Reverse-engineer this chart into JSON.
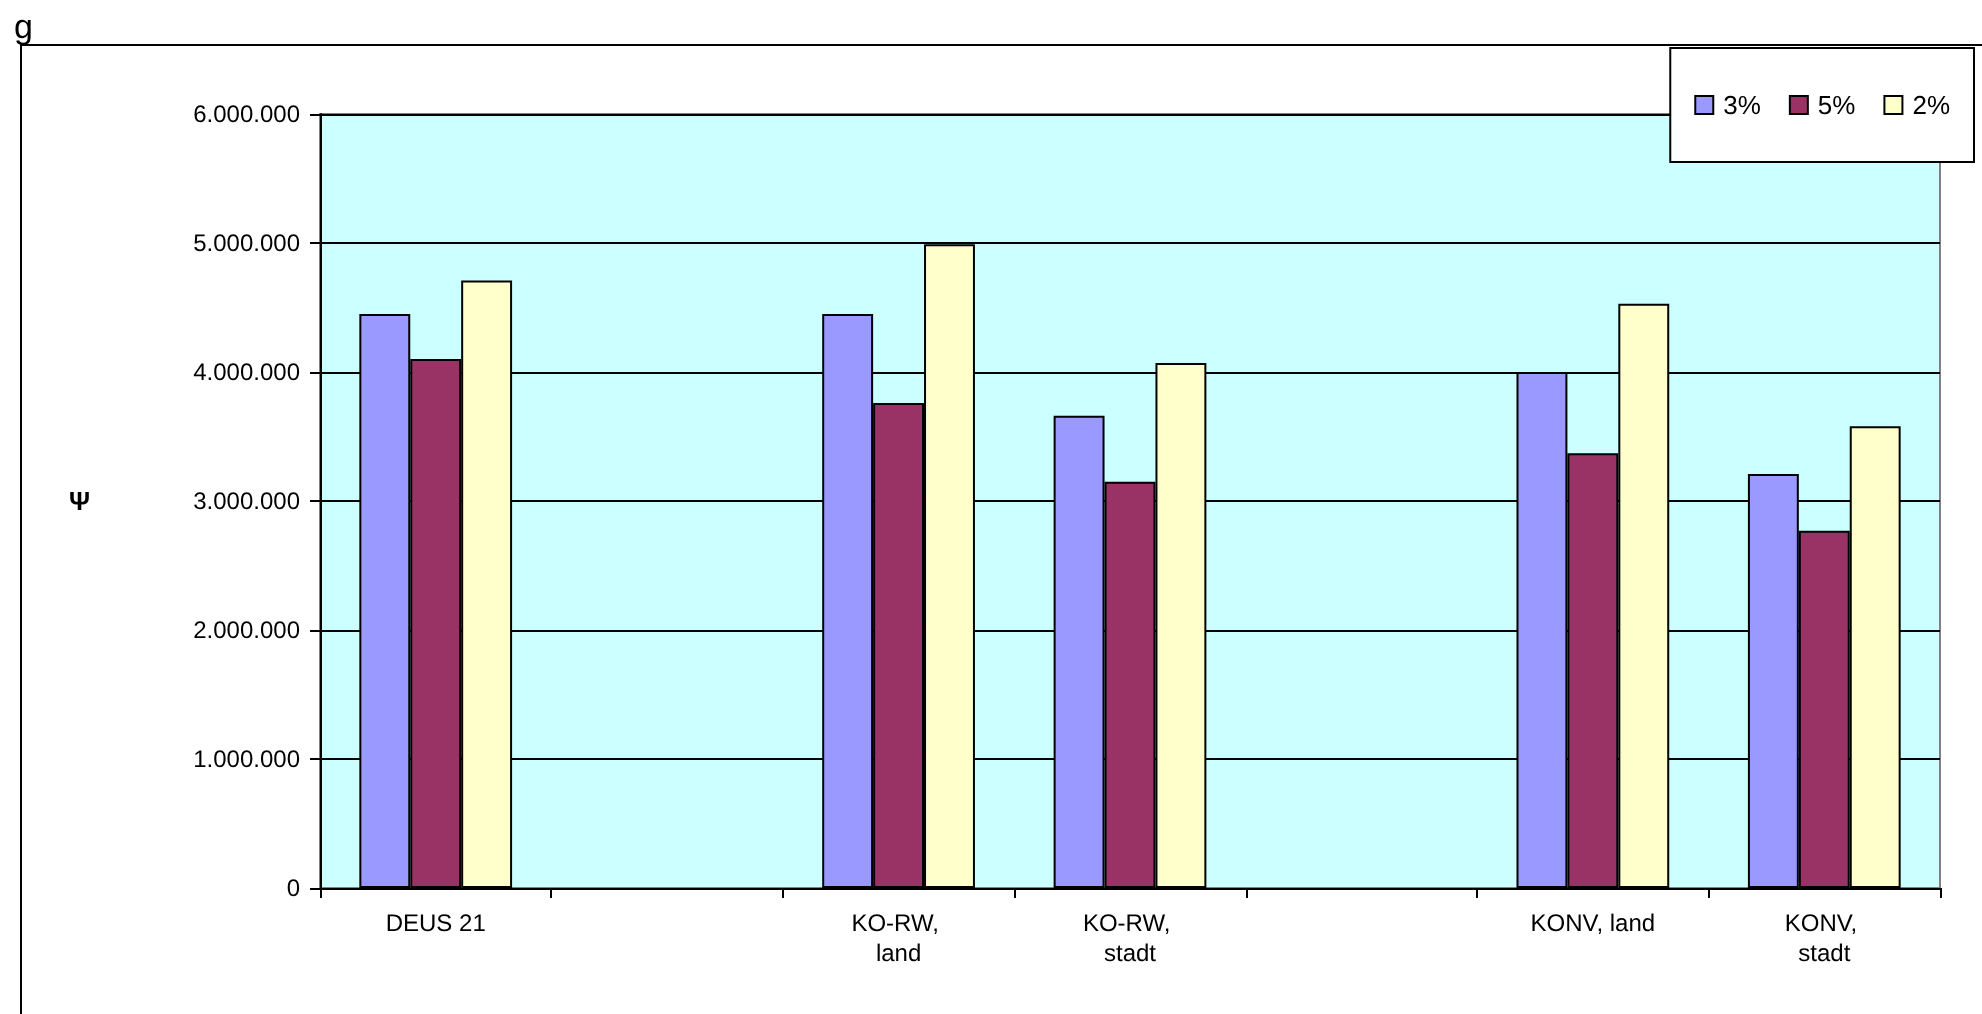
{
  "chart_data": {
    "type": "bar",
    "title": "g",
    "ylabel": "Ψ",
    "categories": [
      "DEUS 21",
      null,
      "KO-RW, land",
      "KO-RW, stadt",
      null,
      "KONV, land",
      "KONV, stadt"
    ],
    "series": [
      {
        "name": "3%",
        "color": "#9999ff",
        "values": [
          4450000,
          null,
          4450000,
          3660000,
          null,
          4000000,
          3210000
        ]
      },
      {
        "name": "5%",
        "color": "#993366",
        "values": [
          4100000,
          null,
          3760000,
          3150000,
          null,
          3370000,
          2770000
        ]
      },
      {
        "name": "2%",
        "color": "#ffffcc",
        "values": [
          4710000,
          null,
          4990000,
          4070000,
          null,
          4530000,
          3580000
        ]
      }
    ],
    "ylim": [
      0,
      6000000
    ],
    "yticks": [
      0,
      {
        "value": 1000000,
        "label": "1.000.000"
      },
      {
        "value": 2000000,
        "label": "2.000.000"
      },
      {
        "value": 3000000,
        "label": "3.000.000"
      },
      {
        "value": 4000000,
        "label": "4.000.000"
      },
      {
        "value": 5000000,
        "label": "5.000.000"
      },
      {
        "value": 6000000,
        "label": "6.000.000"
      }
    ],
    "grid": "y",
    "legend": "top right"
  }
}
